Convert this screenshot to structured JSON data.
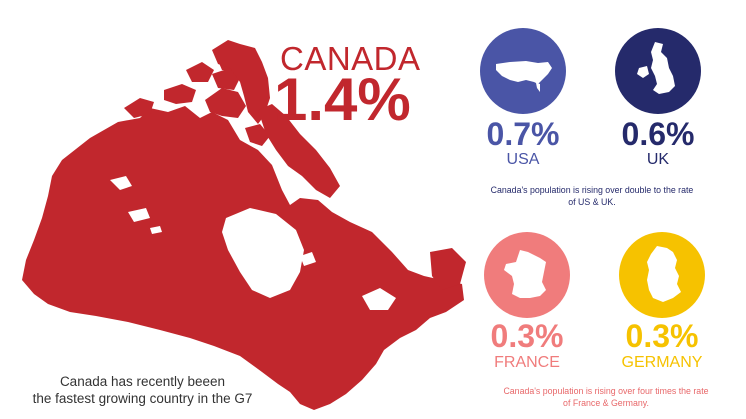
{
  "canada": {
    "title": "CANADA",
    "pct": "1.4%",
    "color": "#c1272d"
  },
  "caption": {
    "line1": "Canada has recently beeen",
    "line2": "the fastest growing country in the G7"
  },
  "countries": [
    {
      "pct": "0.7%",
      "label": "USA",
      "color": "#4a55a6",
      "icon": "usa-map-icon"
    },
    {
      "pct": "0.6%",
      "label": "UK",
      "color": "#252a6b",
      "icon": "uk-map-icon"
    },
    {
      "pct": "0.3%",
      "label": "FRANCE",
      "color": "#f07c7c",
      "icon": "france-map-icon"
    },
    {
      "pct": "0.3%",
      "label": "GERMANY",
      "color": "#f6c200",
      "icon": "germany-map-icon"
    }
  ],
  "notes": {
    "top": {
      "line1": "Canada's population is rising over double to the rate",
      "line2": "of US & UK.",
      "color": "#252a6b"
    },
    "bottom": {
      "line1": "Canada's population is rising over four times the rate",
      "line2": "of France & Germany.",
      "color": "#e8686a"
    }
  }
}
